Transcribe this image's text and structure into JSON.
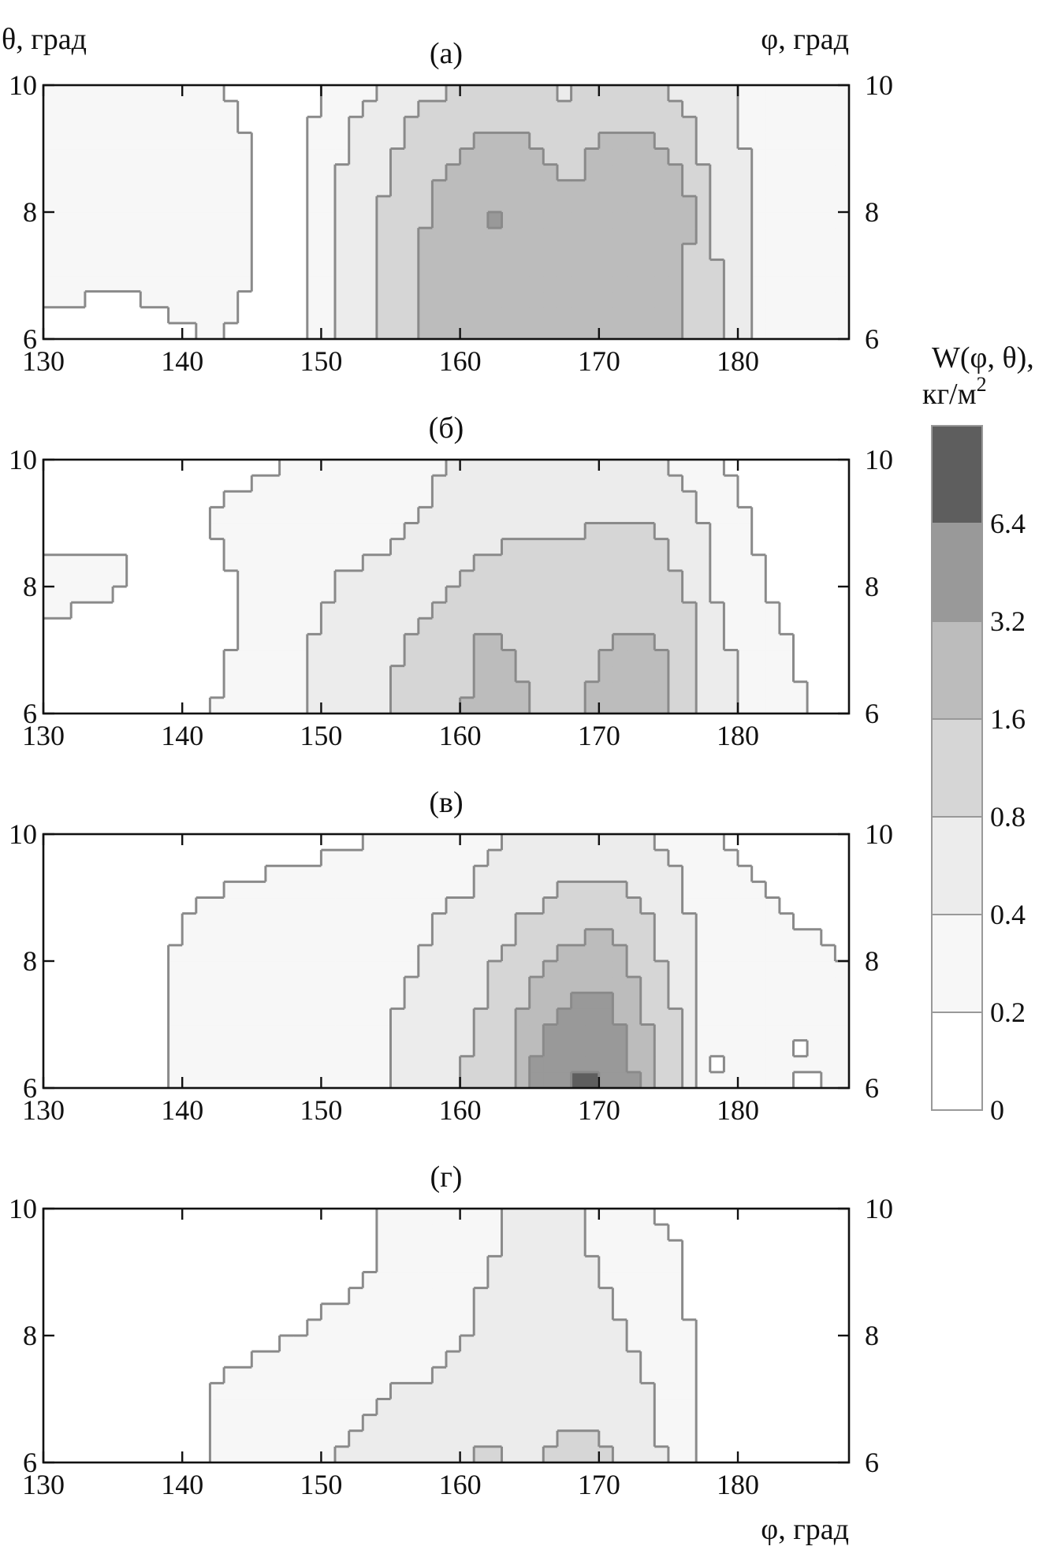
{
  "figure": {
    "y_axis_title_left": "θ, град",
    "y_axis_title_right": "φ, град",
    "x_axis_title": "φ, град",
    "colorbar": {
      "title_main": "W(φ, θ),",
      "title_unit": "кг/м",
      "title_unit_sup": "2",
      "labels": [
        "6.4",
        "3.2",
        "1.6",
        "0.8",
        "0.4",
        "0.2",
        "0"
      ],
      "band_colors": [
        "#ffffff",
        "#f7f7f7",
        "#ececec",
        "#d6d6d6",
        "#bcbcbc",
        "#999999",
        "#5e5e5e"
      ]
    }
  },
  "chart_data": [
    {
      "type": "heatmap",
      "label": "(а)",
      "x_ticks": [
        "130",
        "140",
        "150",
        "160",
        "170",
        "180"
      ],
      "y_ticks": [
        "6",
        "8",
        "10"
      ],
      "xlim": [
        130,
        188
      ],
      "ylim": [
        6,
        10
      ],
      "levels": [
        0,
        0.2,
        0.4,
        0.8,
        1.6,
        3.2,
        6.4
      ],
      "x": [
        130,
        136,
        142,
        148,
        154,
        158,
        162,
        164,
        168,
        170,
        174,
        178,
        182,
        188
      ],
      "y": [
        6,
        7,
        8,
        9,
        10
      ],
      "z": [
        [
          0.05,
          0.1,
          0.2,
          0.1,
          0.7,
          1.8,
          2.2,
          2.0,
          1.8,
          1.8,
          2.2,
          0.9,
          0.3,
          0.3
        ],
        [
          0.3,
          0.25,
          0.3,
          0.1,
          0.8,
          1.8,
          2.3,
          2.2,
          1.7,
          1.9,
          2.3,
          0.9,
          0.3,
          0.25
        ],
        [
          0.3,
          0.35,
          0.3,
          0.1,
          0.7,
          1.7,
          3.4,
          3.3,
          1.7,
          2.0,
          3.4,
          0.8,
          0.3,
          0.25
        ],
        [
          0.3,
          0.3,
          0.3,
          0.1,
          0.6,
          1.2,
          1.8,
          1.8,
          1.3,
          1.8,
          1.8,
          0.6,
          0.3,
          0.2
        ],
        [
          0.25,
          0.25,
          0.2,
          0.1,
          0.4,
          0.7,
          0.8,
          0.8,
          0.7,
          0.8,
          0.8,
          0.5,
          0.2,
          0.2
        ]
      ]
    },
    {
      "type": "heatmap",
      "label": "(б)",
      "x_ticks": [
        "130",
        "140",
        "150",
        "160",
        "170",
        "180"
      ],
      "y_ticks": [
        "6",
        "8",
        "10"
      ],
      "xlim": [
        130,
        188
      ],
      "ylim": [
        6,
        10
      ],
      "levels": [
        0,
        0.2,
        0.4,
        0.8,
        1.6,
        3.2,
        6.4
      ],
      "x": [
        130,
        136,
        142,
        148,
        154,
        158,
        162,
        164,
        168,
        170,
        174,
        178,
        182,
        188
      ],
      "y": [
        6,
        7,
        8,
        9,
        10
      ],
      "z": [
        [
          0.1,
          0.2,
          0.2,
          0.35,
          0.7,
          1.2,
          1.9,
          1.7,
          1.4,
          1.8,
          2.0,
          0.5,
          0.3,
          0.1
        ],
        [
          0.15,
          0.15,
          0.15,
          0.35,
          0.6,
          1.0,
          1.8,
          1.6,
          1.2,
          1.6,
          1.8,
          0.5,
          0.25,
          0.1
        ],
        [
          0.25,
          0.2,
          0.15,
          0.3,
          0.5,
          0.7,
          1.0,
          1.0,
          0.9,
          1.4,
          1.2,
          0.4,
          0.2,
          0.1
        ],
        [
          0.15,
          0.2,
          0.2,
          0.3,
          0.3,
          0.45,
          0.65,
          0.7,
          0.75,
          0.8,
          0.8,
          0.35,
          0.15,
          0.1
        ],
        [
          0.1,
          0.15,
          0.15,
          0.2,
          0.25,
          0.35,
          0.45,
          0.45,
          0.5,
          0.5,
          0.45,
          0.2,
          0.1,
          0.1
        ]
      ]
    },
    {
      "type": "heatmap",
      "label": "(в)",
      "x_ticks": [
        "130",
        "140",
        "150",
        "160",
        "170",
        "180"
      ],
      "y_ticks": [
        "6",
        "8",
        "10"
      ],
      "xlim": [
        130,
        188
      ],
      "ylim": [
        6,
        10
      ],
      "levels": [
        0,
        0.2,
        0.4,
        0.8,
        1.6,
        3.2,
        6.4
      ],
      "x": [
        130,
        136,
        142,
        148,
        154,
        158,
        162,
        164,
        168,
        170,
        174,
        178,
        182,
        188
      ],
      "y": [
        6,
        7,
        8,
        9,
        10
      ],
      "z": [
        [
          0.1,
          0.15,
          0.25,
          0.3,
          0.3,
          0.6,
          1.0,
          1.8,
          6.8,
          6.9,
          1.7,
          0.2,
          0.2,
          0.2
        ],
        [
          0.1,
          0.15,
          0.25,
          0.3,
          0.35,
          0.5,
          0.9,
          1.5,
          4.0,
          4.3,
          1.2,
          0.2,
          0.2,
          0.2
        ],
        [
          0.1,
          0.15,
          0.25,
          0.3,
          0.3,
          0.45,
          0.7,
          1.0,
          1.9,
          2.3,
          0.9,
          0.25,
          0.25,
          0.2
        ],
        [
          0.1,
          0.15,
          0.2,
          0.25,
          0.25,
          0.35,
          0.45,
          0.6,
          0.9,
          1.0,
          0.6,
          0.25,
          0.2,
          0.15
        ],
        [
          0.1,
          0.1,
          0.15,
          0.15,
          0.2,
          0.25,
          0.35,
          0.45,
          0.5,
          0.5,
          0.4,
          0.2,
          0.15,
          0.15
        ]
      ]
    },
    {
      "type": "heatmap",
      "label": "(г)",
      "x_ticks": [
        "130",
        "140",
        "150",
        "160",
        "170",
        "180"
      ],
      "y_ticks": [
        "6",
        "8",
        "10"
      ],
      "xlim": [
        130,
        188
      ],
      "ylim": [
        6,
        10
      ],
      "levels": [
        0,
        0.2,
        0.4,
        0.8,
        1.6,
        3.2,
        6.4
      ],
      "x": [
        130,
        136,
        142,
        148,
        154,
        158,
        162,
        164,
        168,
        170,
        174,
        178,
        182,
        188
      ],
      "y": [
        6,
        7,
        8,
        9,
        10
      ],
      "z": [
        [
          0.1,
          0.15,
          0.2,
          0.35,
          0.45,
          0.6,
          0.9,
          0.7,
          0.9,
          0.9,
          0.45,
          0.15,
          0.15,
          0.1
        ],
        [
          0.1,
          0.15,
          0.2,
          0.3,
          0.4,
          0.45,
          0.7,
          0.6,
          0.7,
          0.7,
          0.4,
          0.15,
          0.15,
          0.1
        ],
        [
          0.1,
          0.15,
          0.15,
          0.2,
          0.25,
          0.3,
          0.45,
          0.5,
          0.5,
          0.5,
          0.3,
          0.15,
          0.15,
          0.1
        ],
        [
          0.1,
          0.1,
          0.15,
          0.15,
          0.2,
          0.3,
          0.4,
          0.45,
          0.45,
          0.4,
          0.25,
          0.15,
          0.15,
          0.1
        ],
        [
          0.1,
          0.1,
          0.1,
          0.15,
          0.2,
          0.25,
          0.35,
          0.45,
          0.45,
          0.35,
          0.2,
          0.15,
          0.2,
          0.1
        ]
      ]
    }
  ]
}
